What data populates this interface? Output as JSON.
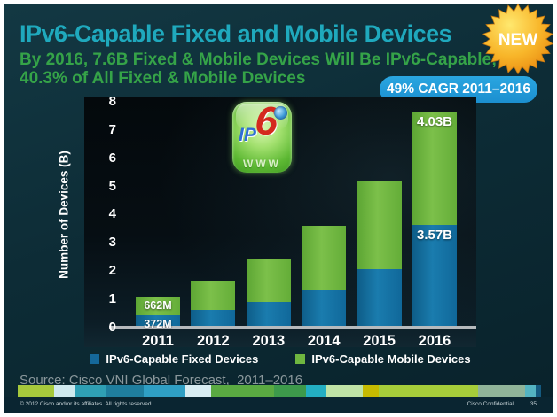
{
  "slide": {
    "title": "IPv6-Capable Fixed and Mobile Devices",
    "subtitle_line1": "By 2016, 7.6B Fixed & Mobile Devices Will Be IPv6-Capable;",
    "subtitle_line2": "40.3% of All Fixed & Mobile Devices",
    "new_badge": "NEW",
    "cagr_badge": "49% CAGR 2011–2016",
    "source": "Source: Cisco VNI Global Forecast,  2011–2016",
    "footer_left": "© 2012 Cisco and/or its affiliates. All rights reserved.",
    "footer_right": "Cisco Confidential",
    "page_number": "35"
  },
  "logo": {
    "ip": "IP",
    "six": "6",
    "www": "WWW"
  },
  "colors": {
    "title": "#1fa9bd",
    "subtitle": "#35a348",
    "cagr_pill": "#1b8fd0",
    "fixed_bar": "#15689a",
    "mobile_bar": "#6fb640",
    "baseline": "#b6babd",
    "new_badge_gold": "#f8b62a"
  },
  "chart_data": {
    "type": "bar",
    "stacked": true,
    "title": "IPv6-Capable Fixed and Mobile Devices",
    "categories": [
      "2011",
      "2012",
      "2013",
      "2014",
      "2015",
      "2016"
    ],
    "series": [
      {
        "name": "IPv6-Capable Fixed Devices",
        "color": "#15689a",
        "values": [
          0.37,
          0.55,
          0.85,
          1.3,
          2.0,
          3.57
        ],
        "labels": [
          "372M",
          "",
          "",
          "",
          "",
          "3.57B"
        ]
      },
      {
        "name": "IPv6-Capable Mobile Devices",
        "color": "#6fb640",
        "values": [
          0.66,
          1.05,
          1.5,
          2.25,
          3.1,
          4.03
        ],
        "labels": [
          "662M",
          "",
          "",
          "",
          "",
          "4.03B"
        ]
      }
    ],
    "totals": [
      1.03,
      1.6,
      2.35,
      3.55,
      5.1,
      7.6
    ],
    "xlabel": "",
    "ylabel": "Number of Devices (B)",
    "ylim": [
      0,
      8
    ],
    "yticks": [
      0,
      1,
      2,
      3,
      4,
      5,
      6,
      7,
      8
    ],
    "legend_position": "bottom",
    "grid": false
  },
  "strip_segments": [
    {
      "color": "#a6c93c",
      "grow": 7
    },
    {
      "color": "#cfe9ee",
      "grow": 4
    },
    {
      "color": "#2f9fb4",
      "grow": 6
    },
    {
      "color": "#1f7e9e",
      "grow": 7
    },
    {
      "color": "#2f9fc4",
      "grow": 8
    },
    {
      "color": "#d8edf2",
      "grow": 5
    },
    {
      "color": "#5aaa42",
      "grow": 12
    },
    {
      "color": "#3d9a4b",
      "grow": 6
    },
    {
      "color": "#23aec2",
      "grow": 4
    },
    {
      "color": "#bfe3a6",
      "grow": 7
    },
    {
      "color": "#c6ba00",
      "grow": 3
    },
    {
      "color": "#a6cd3a",
      "grow": 19
    },
    {
      "color": "#90b499",
      "grow": 9
    },
    {
      "color": "#54b4c2",
      "grow": 2
    },
    {
      "color": "#155a80",
      "grow": 1
    }
  ]
}
